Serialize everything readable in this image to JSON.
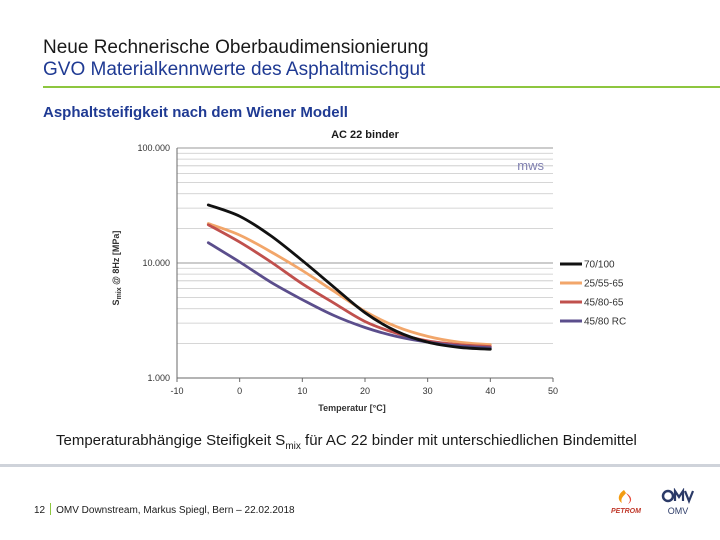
{
  "slide": {
    "title_line1": "Neue Rechnerische Oberbaudimensionierung",
    "title_line2": "GVO Materialkennwerte des Asphaltmischgut",
    "subtitle": "Asphaltsteifigkeit nach dem Wiener Modell",
    "caption_pre": "Temperaturabhängige Steifigkeit S",
    "caption_sub": "mix",
    "caption_post": " für AC 22 binder mit unterschiedlichen Bindemittel",
    "page_number": "12",
    "footer_text": "OMV Downstream, Markus Spiegl, Bern – 22.02.2018",
    "logo_petrom_text": "PETROM",
    "logo_omv_text": "OMV",
    "accent_green": "#8dc63f",
    "title_blue": "#1f3a93"
  },
  "chart_data": {
    "type": "line",
    "title": "AC 22 binder",
    "watermark": "mws",
    "xlabel": "Temperatur [°C]",
    "ylabel_main": "S",
    "ylabel_sub": "mix",
    "ylabel_rest": " @ 8Hz [MPa]",
    "yscale": "log",
    "xlim": [
      -10,
      50
    ],
    "ylim": [
      1000,
      100000
    ],
    "xticks": [
      -10,
      0,
      10,
      20,
      30,
      40,
      50
    ],
    "xtick_labels": [
      "-10",
      "0",
      "10",
      "20",
      "30",
      "40",
      "50"
    ],
    "yticks": [
      1000,
      10000,
      100000
    ],
    "ytick_labels": [
      "1.000",
      "10.000",
      "100.000"
    ],
    "grid": true,
    "legend_position": "right",
    "series": [
      {
        "name": "70/100",
        "color": "#111111",
        "x": [
          -5,
          0,
          5,
          10,
          15,
          20,
          25,
          30,
          35,
          40
        ],
        "y": [
          32000,
          25500,
          17200,
          10500,
          6200,
          3700,
          2550,
          2050,
          1850,
          1780
        ]
      },
      {
        "name": "25/55-65",
        "color": "#f2a66a",
        "x": [
          -5,
          0,
          5,
          10,
          15,
          20,
          25,
          30,
          35,
          40
        ],
        "y": [
          22000,
          17500,
          12500,
          8600,
          5700,
          3800,
          2800,
          2300,
          2050,
          1950
        ]
      },
      {
        "name": "45/80-65",
        "color": "#c0504d",
        "x": [
          -5,
          0,
          5,
          10,
          15,
          20,
          25,
          30,
          35,
          40
        ],
        "y": [
          21500,
          15200,
          10200,
          6600,
          4500,
          3100,
          2450,
          2100,
          1950,
          1880
        ]
      },
      {
        "name": "45/80 RC",
        "color": "#5b4e8c",
        "x": [
          -5,
          0,
          5,
          10,
          15,
          20,
          25,
          30,
          35,
          40
        ],
        "y": [
          15000,
          10200,
          6800,
          4800,
          3500,
          2750,
          2300,
          2050,
          1900,
          1830
        ]
      }
    ]
  }
}
